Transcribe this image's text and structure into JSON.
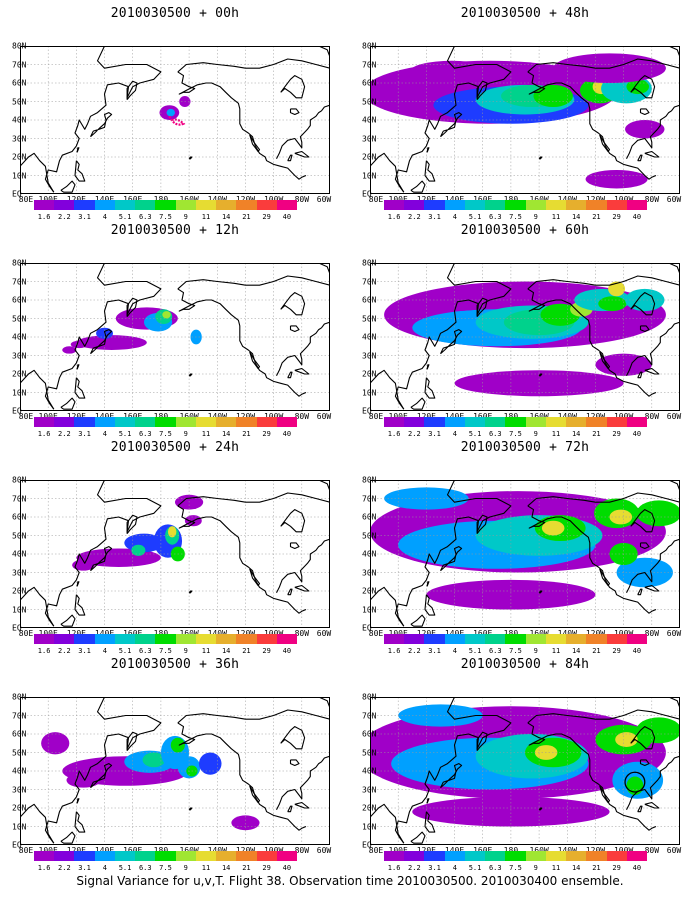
{
  "lat_labels": [
    "80N",
    "70N",
    "60N",
    "50N",
    "40N",
    "30N",
    "20N",
    "10N",
    "EQ"
  ],
  "lon_labels": [
    "80E",
    "100E",
    "120E",
    "140E",
    "160E",
    "180",
    "160W",
    "140W",
    "120W",
    "100W",
    "80W",
    "60W"
  ],
  "colorbar": {
    "ticks": [
      "1.6",
      "2.2",
      "3.1",
      "4",
      "5.1",
      "6.3",
      "7.5",
      "9",
      "11",
      "14",
      "21",
      "29",
      "40"
    ],
    "colors": [
      "#a000c8",
      "#8200dc",
      "#1e3cff",
      "#00a0ff",
      "#00c8c8",
      "#00d28c",
      "#00dc00",
      "#a0e632",
      "#e6dc32",
      "#e6af2d",
      "#f08228",
      "#fa3c3c",
      "#f00082"
    ]
  },
  "panels": [
    {
      "title": "2010030500 + 00h"
    },
    {
      "title": "2010030500 + 48h"
    },
    {
      "title": "2010030500 + 12h"
    },
    {
      "title": "2010030500 + 60h"
    },
    {
      "title": "2010030500 + 24h"
    },
    {
      "title": "2010030500 + 72h"
    },
    {
      "title": "2010030500 + 36h"
    },
    {
      "title": "2010030500 + 84h"
    }
  ],
  "caption": "Signal Variance for u,v,T. Flight 38. Observation time 2010030500. 2010030400 ensemble."
}
